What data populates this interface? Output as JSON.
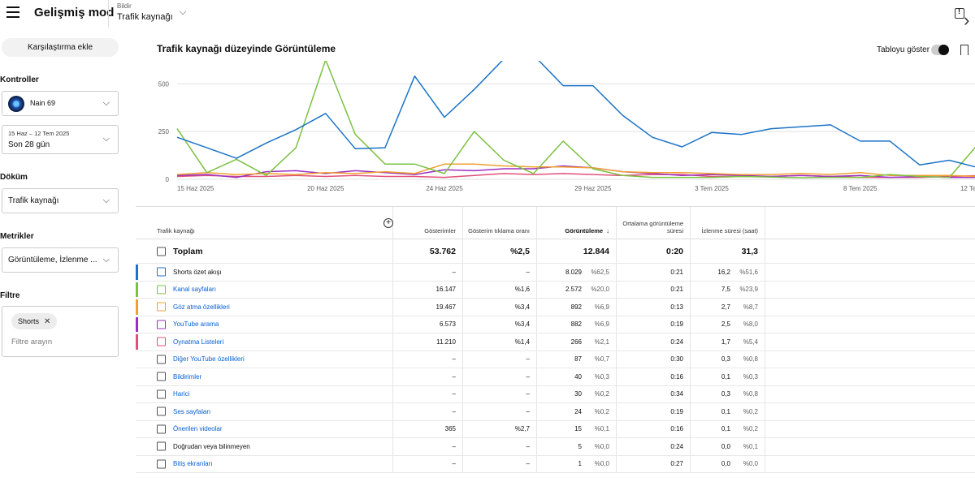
{
  "header": {
    "app_title": "Gelişmiş mod",
    "report_small_label": "Bildir",
    "report_value": "Trafik kaynağı"
  },
  "sidebar": {
    "compare_button": "Karşılaştırma ekle",
    "controls_label": "Kontroller",
    "channel_name": "Nain 69",
    "date_range_small": "15 Haz – 12 Tem 2025",
    "date_range_big": "Son 28 gün",
    "breakdown_label": "Döküm",
    "breakdown_value": "Trafik kaynağı",
    "metrics_label": "Metrikler",
    "metrics_value": "Görüntüleme, İzlenme ...",
    "filter_label": "Filtre",
    "filter_chip": "Shorts",
    "filter_placeholder": "Filtre arayın"
  },
  "chart_header": {
    "title": "Trafik kaynağı düzeyinde Görüntüleme",
    "show_table_label": "Tabloyu göster"
  },
  "chart_data": {
    "type": "line",
    "ylim": [
      0,
      620
    ],
    "yticks": [
      "0",
      "250",
      "500"
    ],
    "ytick_values": [
      0,
      250,
      500
    ],
    "x_tick_labels": [
      "15 Haz 2025",
      "20 Haz 2025",
      "24 Haz 2025",
      "29 Haz 2025",
      "3 Tem 2025",
      "8 Tem 2025",
      "12 Tem 2025"
    ],
    "x_tick_index": [
      0,
      5,
      9,
      14,
      18,
      23,
      27
    ],
    "x": [
      "15 Haz",
      "16 Haz",
      "17 Haz",
      "18 Haz",
      "19 Haz",
      "20 Haz",
      "21 Haz",
      "22 Haz",
      "23 Haz",
      "24 Haz",
      "25 Haz",
      "26 Haz",
      "27 Haz",
      "28 Haz",
      "29 Haz",
      "30 Haz",
      "1 Tem",
      "2 Tem",
      "3 Tem",
      "4 Tem",
      "5 Tem",
      "6 Tem",
      "7 Tem",
      "8 Tem",
      "9 Tem",
      "10 Tem",
      "11 Tem",
      "12 Tem"
    ],
    "series": [
      {
        "name": "Shorts özet akışı",
        "color": "#1a73c8",
        "values": [
          220,
          165,
          110,
          190,
          260,
          345,
          160,
          165,
          540,
          325,
          470,
          630,
          650,
          490,
          490,
          335,
          220,
          170,
          245,
          235,
          265,
          275,
          285,
          200,
          200,
          75,
          100,
          60
        ]
      },
      {
        "name": "Kanal sayfaları",
        "color": "#7cc142",
        "values": [
          265,
          35,
          105,
          20,
          165,
          625,
          235,
          80,
          80,
          30,
          250,
          100,
          30,
          200,
          55,
          20,
          10,
          10,
          10,
          15,
          12,
          8,
          10,
          10,
          25,
          15,
          10,
          190
        ]
      },
      {
        "name": "Göz atma özellikleri",
        "color": "#f0a030",
        "values": [
          25,
          35,
          25,
          30,
          25,
          35,
          30,
          40,
          30,
          80,
          80,
          70,
          65,
          65,
          60,
          40,
          35,
          35,
          30,
          25,
          25,
          30,
          25,
          35,
          20,
          20,
          20,
          15
        ]
      },
      {
        "name": "YouTube arama",
        "color": "#9c2fc1",
        "values": [
          20,
          25,
          10,
          40,
          45,
          30,
          45,
          35,
          25,
          50,
          45,
          55,
          55,
          70,
          60,
          40,
          30,
          20,
          25,
          20,
          15,
          20,
          15,
          20,
          10,
          15,
          10,
          10
        ]
      },
      {
        "name": "Oynatma Listeleri",
        "color": "#e0507a",
        "values": [
          15,
          20,
          15,
          15,
          20,
          15,
          20,
          15,
          15,
          10,
          20,
          30,
          25,
          30,
          25,
          20,
          25,
          25,
          15,
          15,
          15,
          20,
          15,
          10,
          10,
          10,
          15,
          20
        ]
      }
    ]
  },
  "table": {
    "headers": {
      "source": "Trafik kaynağı",
      "impressions": "Gösterimler",
      "ctr": "Gösterim tıklama oranı",
      "views": "Görüntüleme",
      "avg_duration": "Ortalama görüntüleme süresi",
      "watch_time": "İzlenme süresi (saat)",
      "sort_arrow": "↓"
    },
    "total": {
      "name": "Toplam",
      "impressions": "53.762",
      "ctr": "%2,5",
      "views": "12.844",
      "avg": "0:20",
      "watch": "31,3"
    },
    "rows": [
      {
        "name": "Shorts özet akışı",
        "plain": true,
        "stripe": "#1a73c8",
        "impressions": "–",
        "ctr": "–",
        "views": "8.029",
        "views_pct": "%62,5",
        "avg": "0:21",
        "watch": "16,2",
        "watch_pct": "%51,6"
      },
      {
        "name": "Kanal sayfaları",
        "plain": false,
        "stripe": "#7cc142",
        "impressions": "16.147",
        "ctr": "%1,6",
        "views": "2.572",
        "views_pct": "%20,0",
        "avg": "0:21",
        "watch": "7,5",
        "watch_pct": "%23,9"
      },
      {
        "name": "Göz atma özellikleri",
        "plain": false,
        "stripe": "#f0a030",
        "impressions": "19.467",
        "ctr": "%3,4",
        "views": "892",
        "views_pct": "%6,9",
        "avg": "0:13",
        "watch": "2,7",
        "watch_pct": "%8,7"
      },
      {
        "name": "YouTube arama",
        "plain": false,
        "stripe": "#9c2fc1",
        "impressions": "6.573",
        "ctr": "%3,4",
        "views": "882",
        "views_pct": "%6,9",
        "avg": "0:19",
        "watch": "2,5",
        "watch_pct": "%8,0"
      },
      {
        "name": "Oynatma Listeleri",
        "plain": false,
        "stripe": "#e0507a",
        "impressions": "11.210",
        "ctr": "%1,4",
        "views": "266",
        "views_pct": "%2,1",
        "avg": "0:24",
        "watch": "1,7",
        "watch_pct": "%5,4"
      },
      {
        "name": "Diğer YouTube özellikleri",
        "plain": false,
        "stripe": "",
        "impressions": "–",
        "ctr": "–",
        "views": "87",
        "views_pct": "%0,7",
        "avg": "0:30",
        "watch": "0,3",
        "watch_pct": "%0,8"
      },
      {
        "name": "Bildirimler",
        "plain": false,
        "stripe": "",
        "impressions": "–",
        "ctr": "–",
        "views": "40",
        "views_pct": "%0,3",
        "avg": "0:16",
        "watch": "0,1",
        "watch_pct": "%0,3"
      },
      {
        "name": "Harici",
        "plain": false,
        "stripe": "",
        "impressions": "–",
        "ctr": "–",
        "views": "30",
        "views_pct": "%0,2",
        "avg": "0:34",
        "watch": "0,3",
        "watch_pct": "%0,8"
      },
      {
        "name": "Ses sayfaları",
        "plain": false,
        "stripe": "",
        "impressions": "–",
        "ctr": "–",
        "views": "24",
        "views_pct": "%0,2",
        "avg": "0:19",
        "watch": "0,1",
        "watch_pct": "%0,2"
      },
      {
        "name": "Önerilen videolar",
        "plain": false,
        "stripe": "",
        "impressions": "365",
        "ctr": "%2,7",
        "views": "15",
        "views_pct": "%0,1",
        "avg": "0:16",
        "watch": "0,1",
        "watch_pct": "%0,2"
      },
      {
        "name": "Doğrudan veya bilinmeyen",
        "plain": true,
        "stripe": "",
        "impressions": "–",
        "ctr": "–",
        "views": "5",
        "views_pct": "%0,0",
        "avg": "0:24",
        "watch": "0,0",
        "watch_pct": "%0,1"
      },
      {
        "name": "Bitiş ekranları",
        "plain": false,
        "stripe": "",
        "impressions": "–",
        "ctr": "–",
        "views": "1",
        "views_pct": "%0,0",
        "avg": "0:27",
        "watch": "0,0",
        "watch_pct": "%0,0"
      }
    ]
  }
}
